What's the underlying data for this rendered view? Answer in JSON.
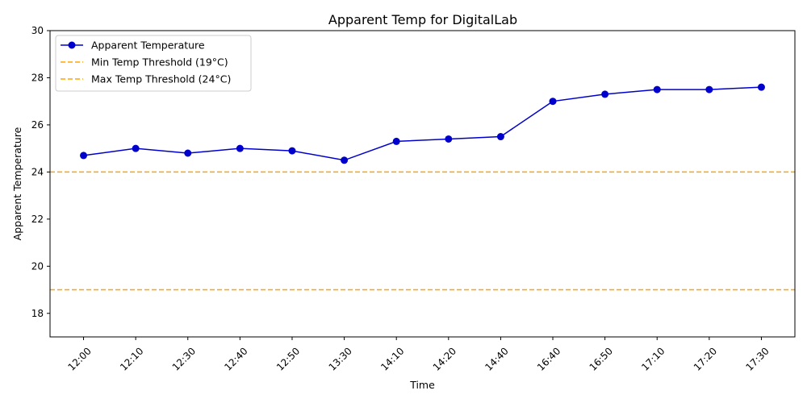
{
  "chart_data": {
    "type": "line",
    "title": "Apparent Temp for DigitalLab",
    "xlabel": "Time",
    "ylabel": "Apparent Temperature",
    "categories": [
      "12:00",
      "12:10",
      "12:30",
      "12:40",
      "12:50",
      "13:30",
      "14:10",
      "14:20",
      "14:40",
      "16:40",
      "16:50",
      "17:10",
      "17:20",
      "17:30"
    ],
    "ylim": [
      17,
      30
    ],
    "yticks": [
      18,
      20,
      22,
      24,
      26,
      28,
      30
    ],
    "grid": false,
    "legend_position": "top-left",
    "series": [
      {
        "name": "Apparent Temperature",
        "values": [
          24.7,
          25.0,
          24.8,
          25.0,
          24.9,
          24.5,
          25.3,
          25.4,
          25.5,
          27.0,
          27.3,
          27.5,
          27.5,
          27.6
        ],
        "color": "#0000cd",
        "marker": "circle"
      }
    ],
    "thresholds": [
      {
        "name": "Min Temp Threshold (19°C)",
        "value": 19,
        "color": "#ffa500",
        "style": "dashed"
      },
      {
        "name": "Max Temp Threshold (24°C)",
        "value": 24,
        "color": "#ffa500",
        "style": "dashed"
      }
    ]
  }
}
